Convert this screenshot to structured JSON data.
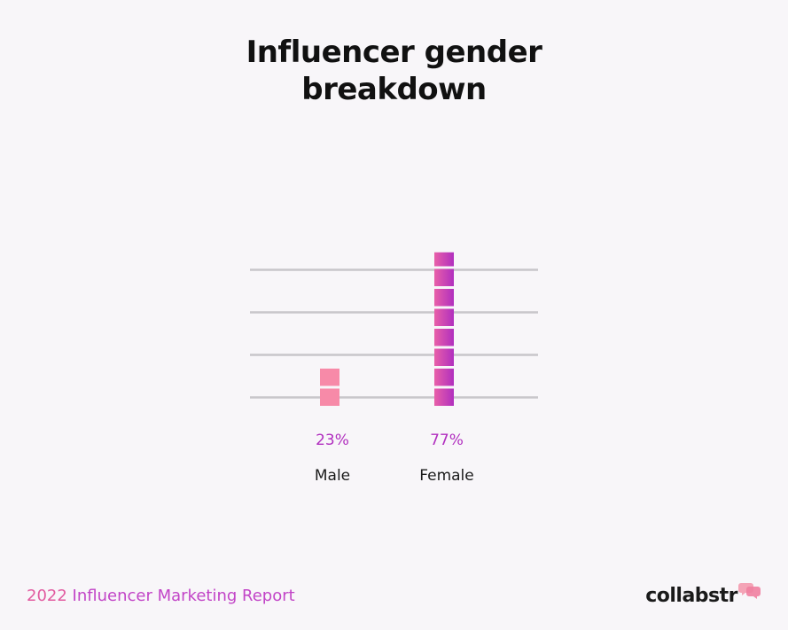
{
  "title_lines": [
    "Influencer gender",
    "breakdown"
  ],
  "footer": {
    "year": "2022",
    "report": "Influencer Marketing Report"
  },
  "brand": {
    "name": "collabstr",
    "mark_icon": "speech-bubbles-icon"
  },
  "colors": {
    "background": "#f8f6f9",
    "title": "#111111",
    "male_bar": "#f78aa8",
    "female_bar_start": "#e85fa8",
    "female_bar_end": "#b12fbf",
    "value_label": "#b12fbf",
    "category_label": "#1a1a1a",
    "gridline": "#c8c6ca",
    "footer_year": "#e25ba0",
    "footer_text": "#c244c7"
  },
  "chart_data": {
    "type": "bar",
    "categories": [
      "Male",
      "Female"
    ],
    "values": [
      23,
      77
    ],
    "value_labels": [
      "23%",
      "77%"
    ],
    "unit": "%",
    "ylim": [
      0,
      100
    ],
    "grid": true
  }
}
